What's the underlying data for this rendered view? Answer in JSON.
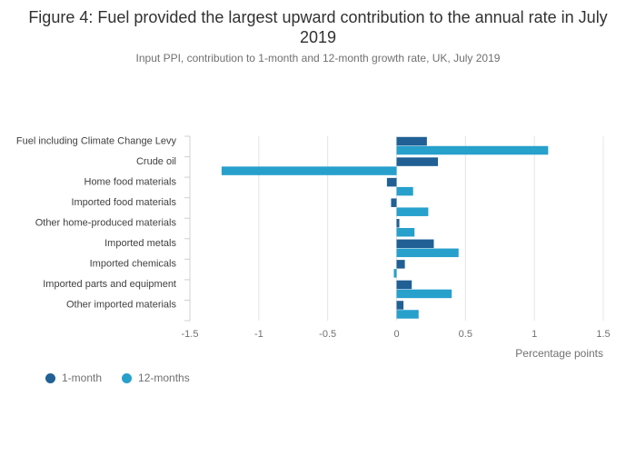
{
  "title": "Figure 4: Fuel provided the largest upward contribution to the annual rate in July 2019",
  "subtitle": "Input PPI, contribution to 1-month and 12-month growth rate, UK, July 2019",
  "chart_data": {
    "type": "bar",
    "orientation": "horizontal",
    "categories": [
      "Fuel including Climate Change Levy",
      "Crude oil",
      "Home food materials",
      "Imported food materials",
      "Other home-produced materials",
      "Imported metals",
      "Imported chemicals",
      "Imported parts and equipment",
      "Other imported materials"
    ],
    "series": [
      {
        "name": "1-month",
        "color": "#206095",
        "values": [
          0.22,
          0.3,
          -0.07,
          -0.04,
          0.02,
          0.27,
          0.06,
          0.11,
          0.05
        ]
      },
      {
        "name": "12-months",
        "color": "#27a0cc",
        "values": [
          1.1,
          -1.27,
          0.12,
          0.23,
          0.13,
          0.45,
          -0.02,
          0.4,
          0.16
        ]
      }
    ],
    "xlim": [
      -1.5,
      1.5
    ],
    "xticks": [
      "-1.5",
      "-1",
      "-0.5",
      "0",
      "0.5",
      "1",
      "1.5"
    ],
    "xlabel": "Percentage points",
    "grid": true,
    "legend_position": "bottom-left"
  }
}
